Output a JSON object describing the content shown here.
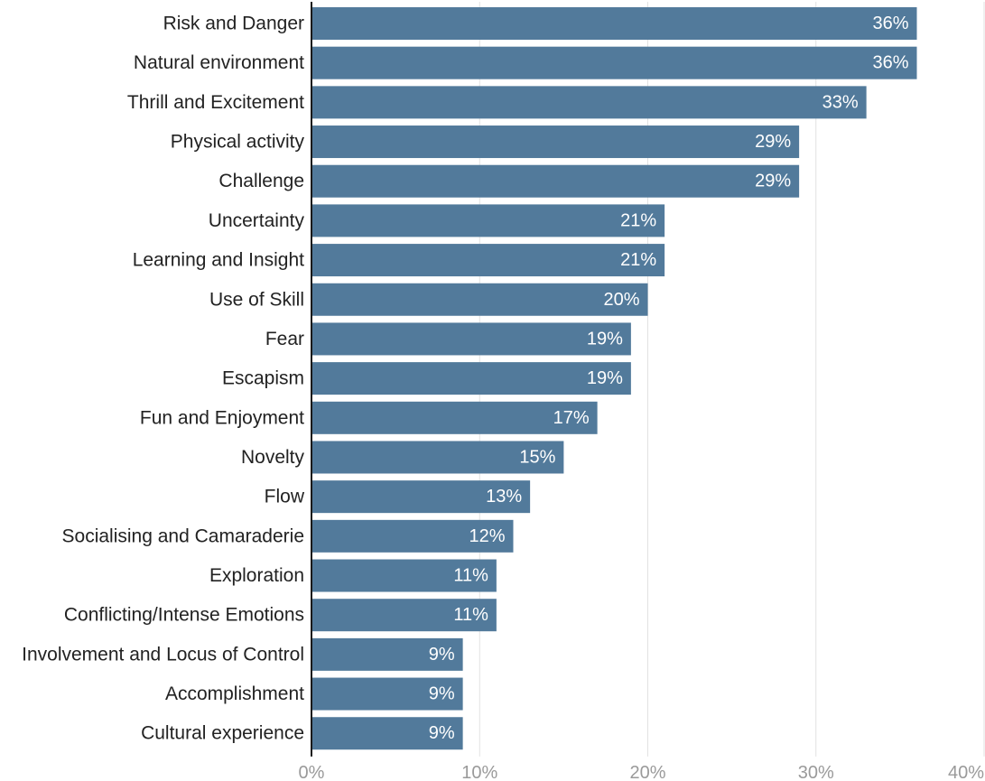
{
  "chart_data": {
    "type": "bar",
    "orientation": "horizontal",
    "categories": [
      "Risk and Danger",
      "Natural environment",
      "Thrill and Excitement",
      "Physical activity",
      "Challenge",
      "Uncertainty",
      "Learning and Insight",
      "Use of Skill",
      "Fear",
      "Escapism",
      "Fun and Enjoyment",
      "Novelty",
      "Flow",
      "Socialising and Camaraderie",
      "Exploration",
      "Conflicting/Intense Emotions",
      "Involvement and Locus of Control",
      "Accomplishment",
      "Cultural experience"
    ],
    "values": [
      36,
      36,
      33,
      29,
      29,
      21,
      21,
      20,
      19,
      19,
      17,
      15,
      13,
      12,
      11,
      11,
      9,
      9,
      9
    ],
    "value_labels": [
      "36%",
      "36%",
      "33%",
      "29%",
      "29%",
      "21%",
      "21%",
      "20%",
      "19%",
      "19%",
      "17%",
      "15%",
      "13%",
      "12%",
      "11%",
      "11%",
      "9%",
      "9%",
      "9%"
    ],
    "xlim": [
      0,
      40
    ],
    "xticks": [
      0,
      10,
      20,
      30,
      40
    ],
    "xtick_labels": [
      "0%",
      "10%",
      "20%",
      "30%",
      "40%"
    ],
    "title": "",
    "xlabel": "",
    "ylabel": "",
    "grid": "vertical",
    "legend": "none",
    "colors": {
      "bar": "#527a9b",
      "value_label": "#ffffff",
      "category_label": "#222222",
      "tick_label": "#9a9a9a",
      "gridline": "#e2e2e2",
      "baseline": "#1a1a1a"
    }
  }
}
